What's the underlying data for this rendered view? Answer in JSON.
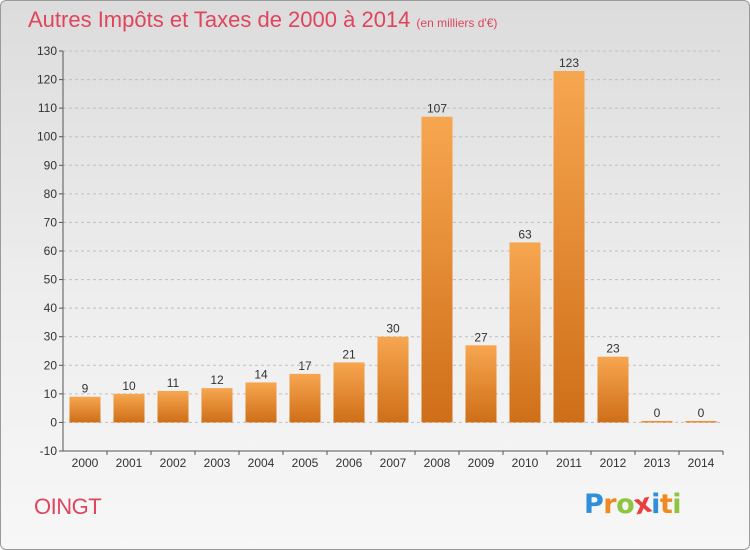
{
  "title": {
    "main": "Autres Impôts et Taxes de 2000 à 2014",
    "subtitle": "(en milliers d'€)"
  },
  "commune": "OINGT",
  "logo": {
    "text": "Proxiti",
    "letters": [
      {
        "ch": "P",
        "color": "#2f8fd8"
      },
      {
        "ch": "r",
        "color": "#f08a20"
      },
      {
        "ch": "o",
        "color": "#8cc63f"
      },
      {
        "ch": "x",
        "color": "#e84040"
      },
      {
        "ch": "i",
        "color": "#2f8fd8"
      },
      {
        "ch": "t",
        "color": "#f08a20"
      },
      {
        "ch": "i",
        "color": "#8cc63f"
      }
    ]
  },
  "colors": {
    "title": "#e0455e",
    "bar_light": "#f7a650",
    "bar_dark": "#cf6e18",
    "grid": "#bfbfbf",
    "text": "#333333"
  },
  "chart_data": {
    "type": "bar",
    "categories": [
      "2000",
      "2001",
      "2002",
      "2003",
      "2004",
      "2005",
      "2006",
      "2007",
      "2008",
      "2009",
      "2010",
      "2011",
      "2012",
      "2013",
      "2014"
    ],
    "values": [
      9,
      10,
      11,
      12,
      14,
      17,
      21,
      30,
      107,
      27,
      63,
      123,
      23,
      0,
      0
    ],
    "data_labels": [
      "9",
      "10",
      "11",
      "12",
      "14",
      "17",
      "21",
      "30",
      "107",
      "27",
      "63",
      "123",
      "23",
      "0",
      "0"
    ],
    "ylim": [
      -10,
      130
    ],
    "yticks": [
      -10,
      0,
      10,
      20,
      30,
      40,
      50,
      60,
      70,
      80,
      90,
      100,
      110,
      120,
      130
    ],
    "grid": "horizontal dashed",
    "legend": "none"
  }
}
